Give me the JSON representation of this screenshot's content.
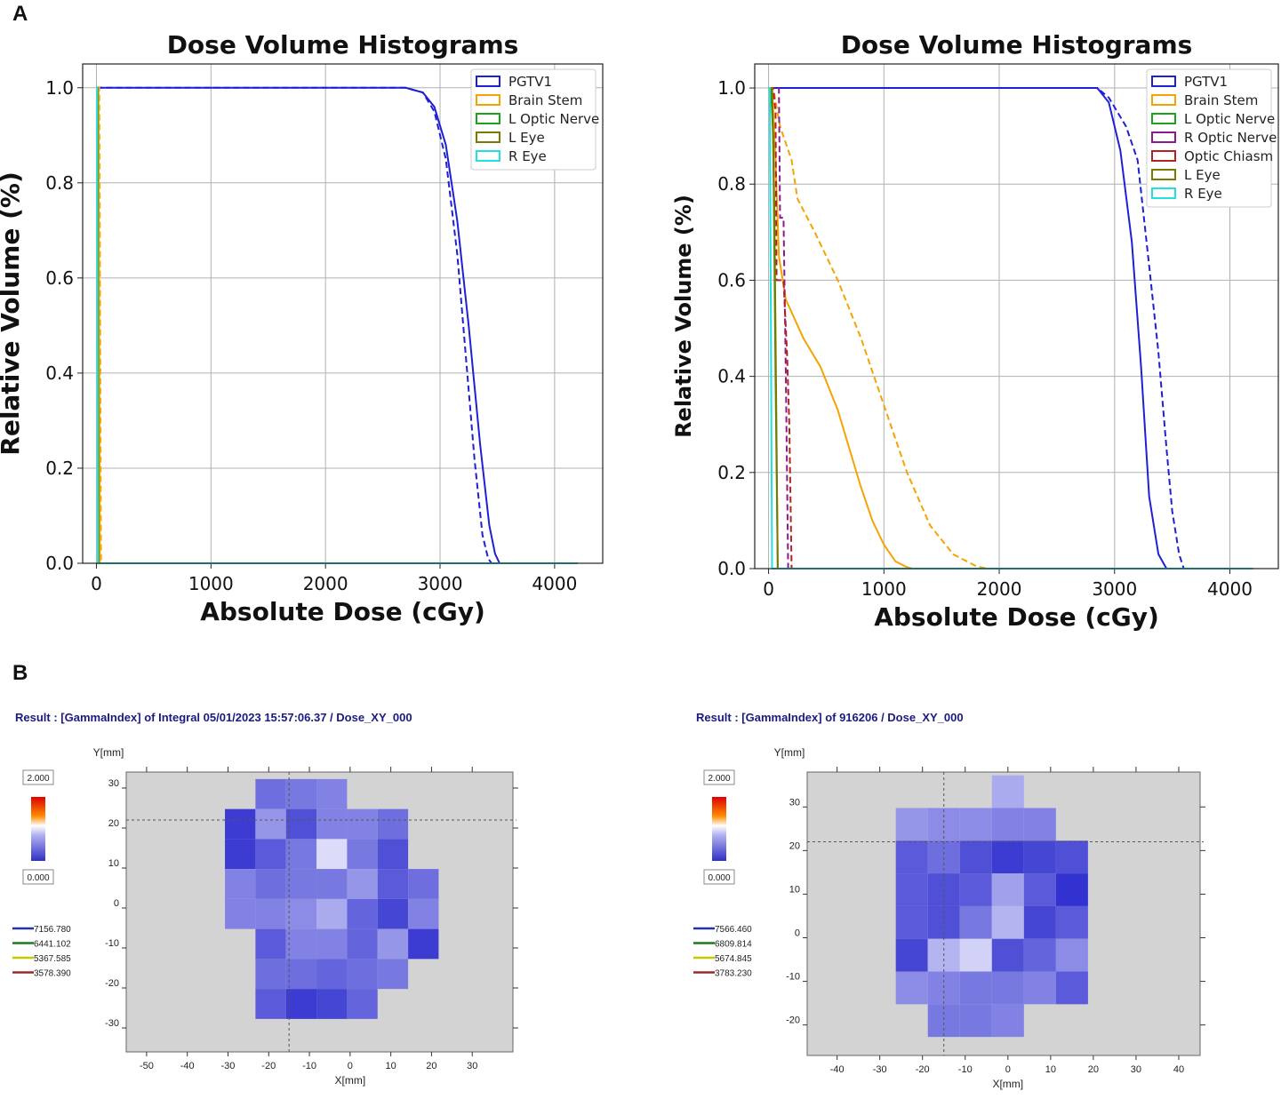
{
  "panel_labels": [
    "A",
    "B"
  ],
  "chart_data": [
    {
      "type": "line",
      "title": "Dose Volume Histograms",
      "xlabel": "Absolute Dose (cGy)",
      "ylabel": "Relative Volume (%)",
      "xlim": [
        -120,
        4420
      ],
      "ylim": [
        0,
        1.05
      ],
      "xticks": [
        "0",
        "1000",
        "2000",
        "3000",
        "4000"
      ],
      "yticks": [
        "0.0",
        "0.2",
        "0.4",
        "0.6",
        "0.8",
        "1.0"
      ],
      "grid": true,
      "legend": [
        "PGTV1",
        "Brain Stem",
        "L Optic Nerve",
        "L Eye",
        "R Eye"
      ],
      "legend_position": "top-right",
      "series": [
        {
          "name": "PGTV1",
          "color": "#1f1fd6",
          "style": "solid",
          "x": [
            0,
            2700,
            2850,
            2950,
            3050,
            3150,
            3250,
            3350,
            3430,
            3480,
            3520,
            4200
          ],
          "y": [
            1.0,
            1.0,
            0.99,
            0.96,
            0.88,
            0.72,
            0.5,
            0.25,
            0.08,
            0.02,
            0.0,
            0.0
          ]
        },
        {
          "name": "PGTV1 (dashed)",
          "color": "#1f1fd6",
          "style": "dashed",
          "x": [
            0,
            2700,
            2850,
            2950,
            3050,
            3150,
            3230,
            3300,
            3370,
            3420,
            3450,
            4200
          ],
          "y": [
            1.0,
            1.0,
            0.99,
            0.95,
            0.85,
            0.65,
            0.42,
            0.22,
            0.06,
            0.01,
            0.0,
            0.0
          ]
        },
        {
          "name": "Brain Stem",
          "color": "#f5a300",
          "style": "solid",
          "x": [
            0,
            18,
            30,
            4200
          ],
          "y": [
            1.0,
            1.0,
            0.0,
            0.0
          ]
        },
        {
          "name": "Brain Stem (dashed)",
          "color": "#f5a300",
          "style": "dashed",
          "x": [
            0,
            25,
            40,
            4200
          ],
          "y": [
            1.0,
            1.0,
            0.0,
            0.0
          ]
        },
        {
          "name": "L Optic Nerve",
          "color": "#1aa31a",
          "style": "solid",
          "x": [
            0,
            10,
            18,
            4200
          ],
          "y": [
            1.0,
            1.0,
            0.0,
            0.0
          ]
        },
        {
          "name": "L Eye",
          "color": "#7a7a00",
          "style": "solid",
          "x": [
            0,
            8,
            15,
            4200
          ],
          "y": [
            1.0,
            1.0,
            0.0,
            0.0
          ]
        },
        {
          "name": "R Eye",
          "color": "#22e0e0",
          "style": "solid",
          "x": [
            0,
            6,
            12,
            4200
          ],
          "y": [
            1.0,
            1.0,
            0.0,
            0.0
          ]
        }
      ]
    },
    {
      "type": "line",
      "title": "Dose Volume Histograms",
      "xlabel": "Absolute Dose (cGy)",
      "ylabel": "Relative Volume (%)",
      "xlim": [
        -120,
        4420
      ],
      "ylim": [
        0,
        1.05
      ],
      "xticks": [
        "0",
        "1000",
        "2000",
        "3000",
        "4000"
      ],
      "yticks": [
        "0.0",
        "0.2",
        "0.4",
        "0.6",
        "0.8",
        "1.0"
      ],
      "grid": true,
      "legend": [
        "PGTV1",
        "Brain Stem",
        "L Optic Nerve",
        "R Optic Nerve",
        "Optic Chiasm",
        "L Eye",
        "R Eye"
      ],
      "legend_position": "top-right",
      "series": [
        {
          "name": "PGTV1",
          "color": "#1f1fd6",
          "style": "solid",
          "x": [
            0,
            2850,
            2950,
            3050,
            3150,
            3230,
            3300,
            3380,
            3450,
            4200
          ],
          "y": [
            1.0,
            1.0,
            0.97,
            0.87,
            0.68,
            0.42,
            0.15,
            0.03,
            0.0,
            0.0
          ]
        },
        {
          "name": "PGTV1 (dashed)",
          "color": "#1f1fd6",
          "style": "dashed",
          "x": [
            0,
            2850,
            2950,
            3100,
            3200,
            3300,
            3380,
            3450,
            3500,
            3560,
            3600,
            4200
          ],
          "y": [
            1.0,
            1.0,
            0.98,
            0.92,
            0.85,
            0.63,
            0.45,
            0.25,
            0.12,
            0.03,
            0.0,
            0.0
          ]
        },
        {
          "name": "Brain Stem",
          "color": "#f5a300",
          "style": "solid",
          "x": [
            0,
            30,
            60,
            90,
            150,
            300,
            450,
            600,
            700,
            800,
            900,
            1000,
            1100,
            1200,
            1250,
            4200
          ],
          "y": [
            1.0,
            1.0,
            0.85,
            0.65,
            0.56,
            0.48,
            0.42,
            0.33,
            0.25,
            0.17,
            0.1,
            0.05,
            0.015,
            0.003,
            0.0,
            0.0
          ]
        },
        {
          "name": "Brain Stem (dashed)",
          "color": "#f5a300",
          "style": "dashed",
          "x": [
            0,
            40,
            100,
            200,
            250,
            400,
            600,
            800,
            1000,
            1200,
            1400,
            1600,
            1800,
            1900,
            4200
          ],
          "y": [
            1.0,
            1.0,
            0.92,
            0.85,
            0.77,
            0.7,
            0.6,
            0.48,
            0.34,
            0.2,
            0.09,
            0.03,
            0.005,
            0.0,
            0.0
          ]
        },
        {
          "name": "L Optic Nerve",
          "color": "#1aa31a",
          "style": "solid",
          "x": [
            0,
            20,
            40,
            60,
            80,
            4200
          ],
          "y": [
            1.0,
            1.0,
            0.9,
            0.4,
            0.0,
            0.0
          ]
        },
        {
          "name": "R Optic Nerve",
          "color": "#8b1a8b",
          "style": "dashed",
          "x": [
            0,
            90,
            100,
            130,
            150,
            170,
            4200
          ],
          "y": [
            1.0,
            1.0,
            0.73,
            0.73,
            0.4,
            0.0,
            0.0
          ]
        },
        {
          "name": "Optic Chiasm",
          "color": "#b22222",
          "style": "dashed",
          "x": [
            0,
            40,
            60,
            70,
            130,
            160,
            180,
            200,
            4200
          ],
          "y": [
            1.0,
            1.0,
            0.95,
            0.6,
            0.6,
            0.45,
            0.3,
            0.0,
            0.0
          ]
        },
        {
          "name": "L Eye",
          "color": "#7a7a00",
          "style": "solid",
          "x": [
            0,
            30,
            50,
            80,
            4200
          ],
          "y": [
            1.0,
            1.0,
            0.75,
            0.0,
            0.0
          ]
        },
        {
          "name": "R Eye",
          "color": "#22e0e0",
          "style": "solid",
          "x": [
            0,
            10,
            20,
            30,
            4200
          ],
          "y": [
            1.0,
            1.0,
            0.5,
            0.0,
            0.0
          ]
        }
      ]
    },
    {
      "type": "heatmap",
      "title": "Result : [GammaIndex] of Integral 05/01/2023 15:57:06.37 / Dose_XY_000",
      "xlabel": "X[mm]",
      "ylabel": "Y[mm]",
      "xlim": [
        -55,
        40
      ],
      "ylim": [
        -36,
        34
      ],
      "xticks": [
        -50,
        -40,
        -30,
        -20,
        -10,
        0,
        10,
        20,
        30
      ],
      "yticks": [
        -30,
        -20,
        -10,
        0,
        10,
        20,
        30
      ],
      "crosshair": {
        "x": -15,
        "y": 22
      },
      "colorbar": {
        "max": "2.000",
        "min": "0.000"
      },
      "contour_legend": [
        {
          "label": "7156.780",
          "color": "#2233aa"
        },
        {
          "label": "6441.102",
          "color": "#1f7a1f"
        },
        {
          "label": "5367.585",
          "color": "#c8c800"
        },
        {
          "label": "3578.390",
          "color": "#9a2b2b"
        }
      ],
      "cell_size": 7.5,
      "cells": [
        {
          "x": -19.5,
          "y": 28.5,
          "v": 0.45
        },
        {
          "x": -12,
          "y": 28.5,
          "v": 0.5
        },
        {
          "x": -4.5,
          "y": 28.5,
          "v": 0.55
        },
        {
          "x": -27,
          "y": 21,
          "v": 0.2
        },
        {
          "x": -19.5,
          "y": 21,
          "v": 0.65
        },
        {
          "x": -12,
          "y": 21,
          "v": 0.3
        },
        {
          "x": -4.5,
          "y": 21,
          "v": 0.55
        },
        {
          "x": 3,
          "y": 21,
          "v": 0.55
        },
        {
          "x": 10.5,
          "y": 21,
          "v": 0.45
        },
        {
          "x": -27,
          "y": 13.5,
          "v": 0.2
        },
        {
          "x": -19.5,
          "y": 13.5,
          "v": 0.35
        },
        {
          "x": -12,
          "y": 13.5,
          "v": 0.5
        },
        {
          "x": -4.5,
          "y": 13.5,
          "v": 1.0
        },
        {
          "x": 3,
          "y": 13.5,
          "v": 0.5
        },
        {
          "x": 10.5,
          "y": 13.5,
          "v": 0.3
        },
        {
          "x": -27,
          "y": 6,
          "v": 0.55
        },
        {
          "x": -19.5,
          "y": 6,
          "v": 0.45
        },
        {
          "x": -12,
          "y": 6,
          "v": 0.5
        },
        {
          "x": -4.5,
          "y": 6,
          "v": 0.5
        },
        {
          "x": 3,
          "y": 6,
          "v": 0.65
        },
        {
          "x": 10.5,
          "y": 6,
          "v": 0.35
        },
        {
          "x": 18,
          "y": 6,
          "v": 0.45
        },
        {
          "x": -27,
          "y": -1.5,
          "v": 0.55
        },
        {
          "x": -19.5,
          "y": -1.5,
          "v": 0.55
        },
        {
          "x": -12,
          "y": -1.5,
          "v": 0.6
        },
        {
          "x": -4.5,
          "y": -1.5,
          "v": 0.75
        },
        {
          "x": 3,
          "y": -1.5,
          "v": 0.4
        },
        {
          "x": 10.5,
          "y": -1.5,
          "v": 0.25
        },
        {
          "x": 18,
          "y": -1.5,
          "v": 0.55
        },
        {
          "x": -19.5,
          "y": -9,
          "v": 0.35
        },
        {
          "x": -12,
          "y": -9,
          "v": 0.55
        },
        {
          "x": -4.5,
          "y": -9,
          "v": 0.55
        },
        {
          "x": 3,
          "y": -9,
          "v": 0.4
        },
        {
          "x": 10.5,
          "y": -9,
          "v": 0.65
        },
        {
          "x": 18,
          "y": -9,
          "v": 0.2
        },
        {
          "x": -19.5,
          "y": -16.5,
          "v": 0.45
        },
        {
          "x": -12,
          "y": -16.5,
          "v": 0.45
        },
        {
          "x": -4.5,
          "y": -16.5,
          "v": 0.4
        },
        {
          "x": 3,
          "y": -16.5,
          "v": 0.45
        },
        {
          "x": 10.5,
          "y": -16.5,
          "v": 0.5
        },
        {
          "x": -19.5,
          "y": -24,
          "v": 0.35
        },
        {
          "x": -12,
          "y": -24,
          "v": 0.2
        },
        {
          "x": -4.5,
          "y": -24,
          "v": 0.25
        },
        {
          "x": 3,
          "y": -24,
          "v": 0.4
        }
      ]
    },
    {
      "type": "heatmap",
      "title": "Result : [GammaIndex] of 916206 / Dose_XY_000",
      "xlabel": "X[mm]",
      "ylabel": "Y[mm]",
      "xlim": [
        -47,
        45
      ],
      "ylim": [
        -27,
        38
      ],
      "xticks": [
        -40,
        -30,
        -20,
        -10,
        0,
        10,
        20,
        30,
        40
      ],
      "yticks": [
        -20,
        -10,
        0,
        10,
        20,
        30
      ],
      "crosshair": {
        "x": -15,
        "y": 22
      },
      "colorbar": {
        "max": "2.000",
        "min": "0.000"
      },
      "contour_legend": [
        {
          "label": "7566.460",
          "color": "#2233aa"
        },
        {
          "label": "6809.814",
          "color": "#1f7a1f"
        },
        {
          "label": "5674.845",
          "color": "#c8c800"
        },
        {
          "label": "3783.230",
          "color": "#9a2b2b"
        }
      ],
      "cell_size": 7.5,
      "cells": [
        {
          "x": 0,
          "y": 33.5,
          "v": 0.75
        },
        {
          "x": -22.5,
          "y": 26,
          "v": 0.65
        },
        {
          "x": -15,
          "y": 26,
          "v": 0.6
        },
        {
          "x": -7.5,
          "y": 26,
          "v": 0.6
        },
        {
          "x": 0,
          "y": 26,
          "v": 0.55
        },
        {
          "x": 7.5,
          "y": 26,
          "v": 0.55
        },
        {
          "x": -22.5,
          "y": 18.5,
          "v": 0.35
        },
        {
          "x": -15,
          "y": 18.5,
          "v": 0.45
        },
        {
          "x": -7.5,
          "y": 18.5,
          "v": 0.3
        },
        {
          "x": 0,
          "y": 18.5,
          "v": 0.2
        },
        {
          "x": 7.5,
          "y": 18.5,
          "v": 0.25
        },
        {
          "x": 15,
          "y": 18.5,
          "v": 0.3
        },
        {
          "x": -22.5,
          "y": 11,
          "v": 0.35
        },
        {
          "x": -15,
          "y": 11,
          "v": 0.3
        },
        {
          "x": -7.5,
          "y": 11,
          "v": 0.35
        },
        {
          "x": 0,
          "y": 11,
          "v": 0.7
        },
        {
          "x": 7.5,
          "y": 11,
          "v": 0.35
        },
        {
          "x": 15,
          "y": 11,
          "v": 0.15
        },
        {
          "x": -22.5,
          "y": 3.5,
          "v": 0.35
        },
        {
          "x": -15,
          "y": 3.5,
          "v": 0.3
        },
        {
          "x": -7.5,
          "y": 3.5,
          "v": 0.5
        },
        {
          "x": 0,
          "y": 3.5,
          "v": 0.8
        },
        {
          "x": 7.5,
          "y": 3.5,
          "v": 0.25
        },
        {
          "x": 15,
          "y": 3.5,
          "v": 0.35
        },
        {
          "x": -22.5,
          "y": -4,
          "v": 0.25
        },
        {
          "x": -15,
          "y": -4,
          "v": 0.8
        },
        {
          "x": -7.5,
          "y": -4,
          "v": 0.95
        },
        {
          "x": 0,
          "y": -4,
          "v": 0.3
        },
        {
          "x": 7.5,
          "y": -4,
          "v": 0.4
        },
        {
          "x": 15,
          "y": -4,
          "v": 0.6
        },
        {
          "x": -22.5,
          "y": -11.5,
          "v": 0.6
        },
        {
          "x": -15,
          "y": -11.5,
          "v": 0.55
        },
        {
          "x": -7.5,
          "y": -11.5,
          "v": 0.5
        },
        {
          "x": 0,
          "y": -11.5,
          "v": 0.5
        },
        {
          "x": 7.5,
          "y": -11.5,
          "v": 0.55
        },
        {
          "x": 15,
          "y": -11.5,
          "v": 0.35
        },
        {
          "x": -15,
          "y": -19,
          "v": 0.5
        },
        {
          "x": -7.5,
          "y": -19,
          "v": 0.5
        },
        {
          "x": 0,
          "y": -19,
          "v": 0.55
        }
      ]
    }
  ]
}
